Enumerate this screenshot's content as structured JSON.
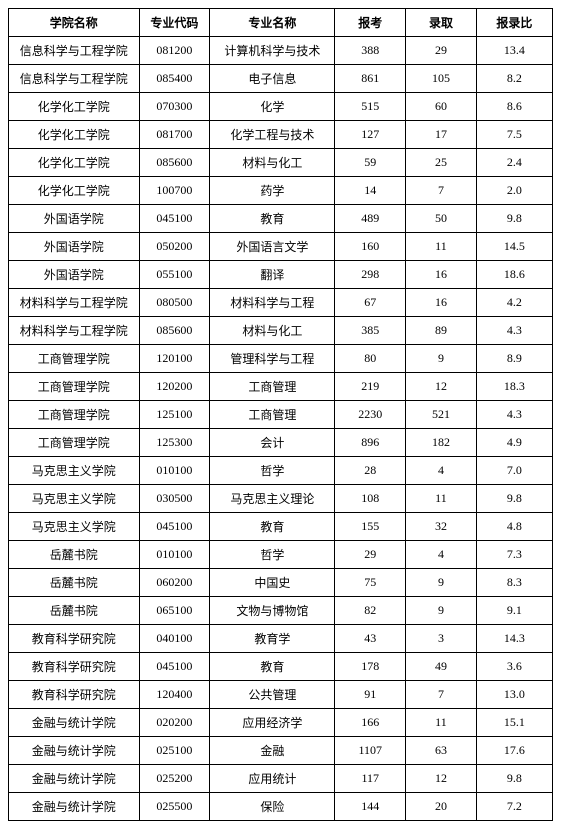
{
  "table": {
    "headers": {
      "college": "学院名称",
      "code": "专业代码",
      "major": "专业名称",
      "apply": "报考",
      "admit": "录取",
      "ratio": "报录比"
    },
    "rows": [
      {
        "college": "信息科学与工程学院",
        "code": "081200",
        "major": "计算机科学与技术",
        "apply": "388",
        "admit": "29",
        "ratio": "13.4"
      },
      {
        "college": "信息科学与工程学院",
        "code": "085400",
        "major": "电子信息",
        "apply": "861",
        "admit": "105",
        "ratio": "8.2"
      },
      {
        "college": "化学化工学院",
        "code": "070300",
        "major": "化学",
        "apply": "515",
        "admit": "60",
        "ratio": "8.6"
      },
      {
        "college": "化学化工学院",
        "code": "081700",
        "major": "化学工程与技术",
        "apply": "127",
        "admit": "17",
        "ratio": "7.5"
      },
      {
        "college": "化学化工学院",
        "code": "085600",
        "major": "材料与化工",
        "apply": "59",
        "admit": "25",
        "ratio": "2.4"
      },
      {
        "college": "化学化工学院",
        "code": "100700",
        "major": "药学",
        "apply": "14",
        "admit": "7",
        "ratio": "2.0"
      },
      {
        "college": "外国语学院",
        "code": "045100",
        "major": "教育",
        "apply": "489",
        "admit": "50",
        "ratio": "9.8"
      },
      {
        "college": "外国语学院",
        "code": "050200",
        "major": "外国语言文学",
        "apply": "160",
        "admit": "11",
        "ratio": "14.5"
      },
      {
        "college": "外国语学院",
        "code": "055100",
        "major": "翻译",
        "apply": "298",
        "admit": "16",
        "ratio": "18.6"
      },
      {
        "college": "材料科学与工程学院",
        "code": "080500",
        "major": "材料科学与工程",
        "apply": "67",
        "admit": "16",
        "ratio": "4.2"
      },
      {
        "college": "材料科学与工程学院",
        "code": "085600",
        "major": "材料与化工",
        "apply": "385",
        "admit": "89",
        "ratio": "4.3"
      },
      {
        "college": "工商管理学院",
        "code": "120100",
        "major": "管理科学与工程",
        "apply": "80",
        "admit": "9",
        "ratio": "8.9"
      },
      {
        "college": "工商管理学院",
        "code": "120200",
        "major": "工商管理",
        "apply": "219",
        "admit": "12",
        "ratio": "18.3"
      },
      {
        "college": "工商管理学院",
        "code": "125100",
        "major": "工商管理",
        "apply": "2230",
        "admit": "521",
        "ratio": "4.3"
      },
      {
        "college": "工商管理学院",
        "code": "125300",
        "major": "会计",
        "apply": "896",
        "admit": "182",
        "ratio": "4.9"
      },
      {
        "college": "马克思主义学院",
        "code": "010100",
        "major": "哲学",
        "apply": "28",
        "admit": "4",
        "ratio": "7.0"
      },
      {
        "college": "马克思主义学院",
        "code": "030500",
        "major": "马克思主义理论",
        "apply": "108",
        "admit": "11",
        "ratio": "9.8"
      },
      {
        "college": "马克思主义学院",
        "code": "045100",
        "major": "教育",
        "apply": "155",
        "admit": "32",
        "ratio": "4.8"
      },
      {
        "college": "岳麓书院",
        "code": "010100",
        "major": "哲学",
        "apply": "29",
        "admit": "4",
        "ratio": "7.3"
      },
      {
        "college": "岳麓书院",
        "code": "060200",
        "major": "中国史",
        "apply": "75",
        "admit": "9",
        "ratio": "8.3"
      },
      {
        "college": "岳麓书院",
        "code": "065100",
        "major": "文物与博物馆",
        "apply": "82",
        "admit": "9",
        "ratio": "9.1"
      },
      {
        "college": "教育科学研究院",
        "code": "040100",
        "major": "教育学",
        "apply": "43",
        "admit": "3",
        "ratio": "14.3"
      },
      {
        "college": "教育科学研究院",
        "code": "045100",
        "major": "教育",
        "apply": "178",
        "admit": "49",
        "ratio": "3.6"
      },
      {
        "college": "教育科学研究院",
        "code": "120400",
        "major": "公共管理",
        "apply": "91",
        "admit": "7",
        "ratio": "13.0"
      },
      {
        "college": "金融与统计学院",
        "code": "020200",
        "major": "应用经济学",
        "apply": "166",
        "admit": "11",
        "ratio": "15.1"
      },
      {
        "college": "金融与统计学院",
        "code": "025100",
        "major": "金融",
        "apply": "1107",
        "admit": "63",
        "ratio": "17.6"
      },
      {
        "college": "金融与统计学院",
        "code": "025200",
        "major": "应用统计",
        "apply": "117",
        "admit": "12",
        "ratio": "9.8"
      },
      {
        "college": "金融与统计学院",
        "code": "025500",
        "major": "保险",
        "apply": "144",
        "admit": "20",
        "ratio": "7.2"
      }
    ]
  }
}
